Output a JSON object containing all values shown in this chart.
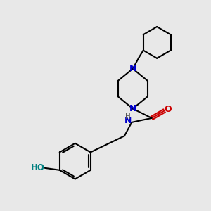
{
  "bg_color": "#e8e8e8",
  "bond_color": "#000000",
  "N_color": "#0000cc",
  "O_color": "#cc0000",
  "HO_color": "#008080",
  "line_width": 1.5,
  "fig_size": [
    3.0,
    3.0
  ],
  "dpi": 100,
  "xlim": [
    0,
    10
  ],
  "ylim": [
    0,
    10
  ]
}
